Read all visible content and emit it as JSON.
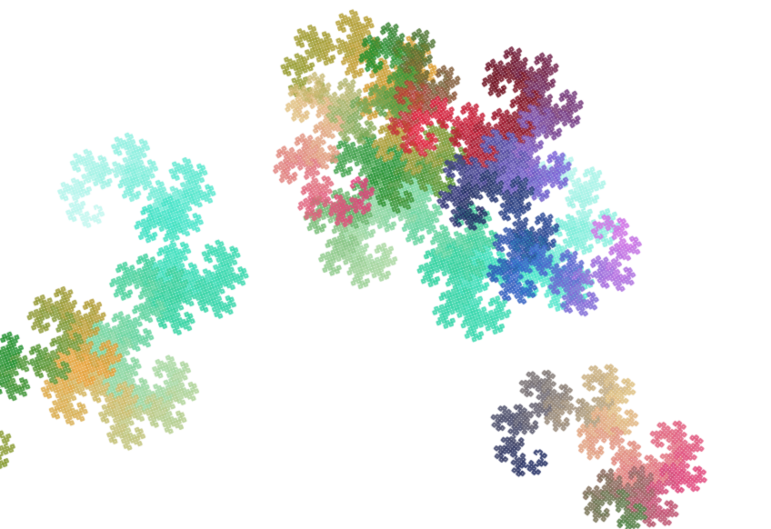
{
  "scene": {
    "subject": "dragon-curve-fractal",
    "background": "#ffffff",
    "curve_count": 4,
    "palette": {
      "cyan": "#3fe3c6",
      "pale_cyan": "#bff7ef",
      "mint": "#2ecf9a",
      "orange": "#e8a035",
      "olive": "#8c9a2e",
      "green": "#1f8f2e",
      "light_green": "#a8d7a0",
      "pink": "#e0407a",
      "crimson": "#e0203c",
      "magenta": "#e070e8",
      "violet": "#7a60d8",
      "blue": "#3060c8",
      "navy": "#1f2a60",
      "maroon": "#6a0a1a",
      "tan": "#e0c080"
    }
  }
}
